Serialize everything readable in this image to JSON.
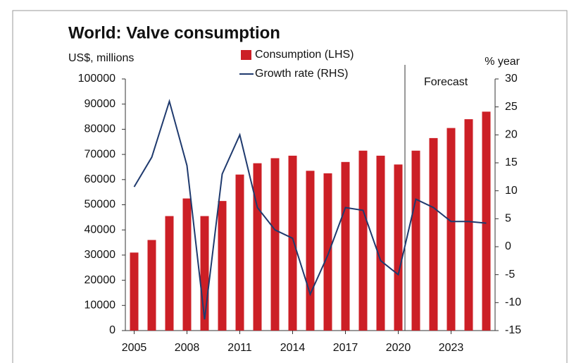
{
  "chart_data": {
    "type": "bar_line",
    "title": "World: Valve consumption",
    "y_label": "US$, millions",
    "y2_label": "% year",
    "annotations": [
      {
        "text": "Forecast"
      }
    ],
    "categories": [
      "2005",
      null,
      null,
      "2008",
      null,
      null,
      "2011",
      null,
      null,
      "2014",
      null,
      null,
      "2017",
      null,
      null,
      "2020",
      null,
      null,
      "2023",
      null,
      null
    ],
    "series": [
      {
        "name": "Consumption (LHS)",
        "type": "bar",
        "color": "#cc1f26",
        "axis": "y",
        "values": [
          31000,
          36000,
          45500,
          52500,
          45500,
          51500,
          62000,
          66500,
          68500,
          69500,
          63500,
          62500,
          67000,
          71500,
          69500,
          66000,
          71500,
          76500,
          80500,
          84000,
          87000
        ]
      },
      {
        "name": "Growth rate (RHS)",
        "type": "line",
        "color": "#1f3a6e",
        "axis": "y2",
        "values": [
          10.7,
          16,
          26,
          14.5,
          -13,
          13,
          20,
          7,
          3,
          1.5,
          -8.5,
          -1.5,
          7,
          6.5,
          -2.5,
          -5,
          8.5,
          7,
          4.5,
          4.5,
          4.2
        ]
      }
    ],
    "ylim": [
      0,
      100000
    ],
    "yticks": [
      0,
      10000,
      20000,
      30000,
      40000,
      50000,
      60000,
      70000,
      80000,
      90000,
      100000
    ],
    "y2lim": [
      -15,
      30
    ],
    "y2ticks": [
      -15,
      -10,
      -5,
      0,
      5,
      10,
      15,
      20,
      25,
      30
    ]
  }
}
